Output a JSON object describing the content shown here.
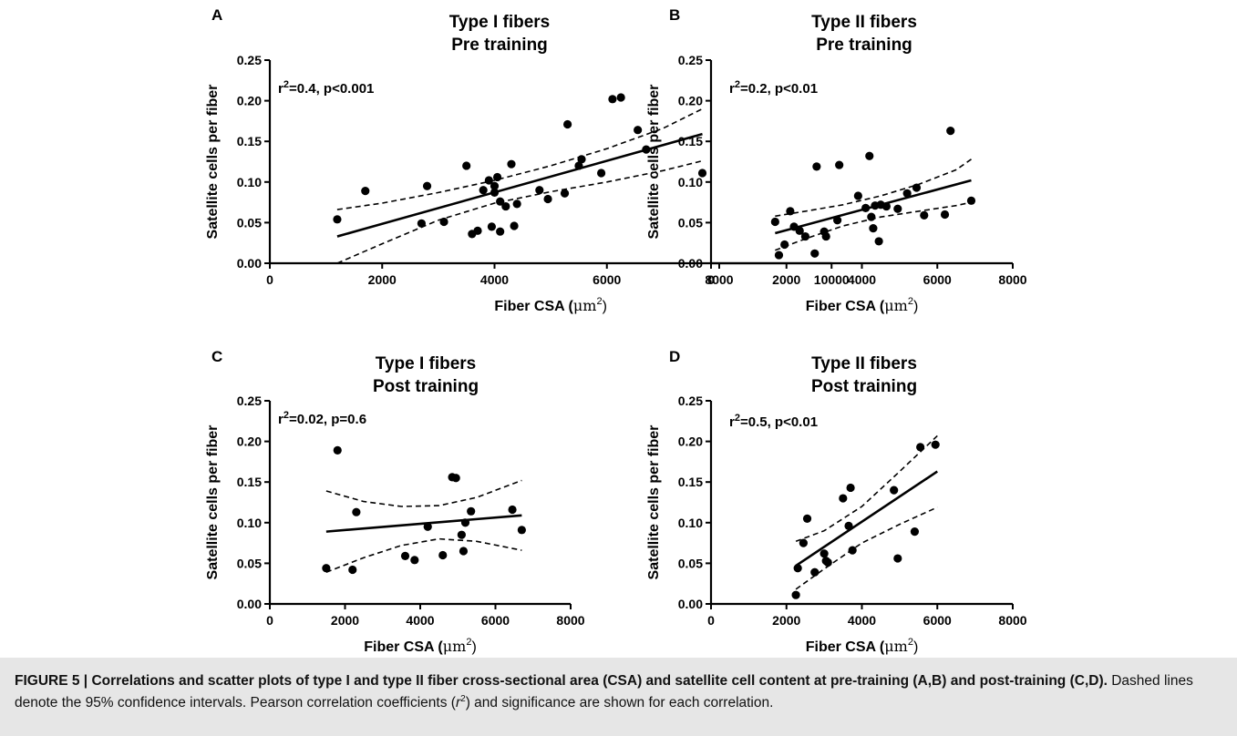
{
  "figure": {
    "caption": {
      "label": "FIGURE 5 |",
      "title": "Correlations and scatter plots of type I and type II fiber cross-sectional area (CSA) and satellite cell content at pre-training (A,B) and post-training (C,D).",
      "body_1": "Dashed lines denote the 95% confidence intervals. Pearson correlation coefficients (",
      "r": "r",
      "sup": "2",
      "body_2": ") and significance are shown for each correlation."
    }
  },
  "chart_data": [
    {
      "type": "scatter",
      "panel": "A",
      "title_line1": "Type I fibers",
      "title_line2": "Pre training",
      "annotation_prefix": "r",
      "annotation_sup": "2",
      "annotation_suffix": "=0.4, p<0.001",
      "xlabel_text": "Fiber CSA (",
      "xlabel_unit": "μm",
      "xlabel_sup": "2",
      "xlabel_close": ")",
      "ylabel": "Satellite cells per fiber",
      "xlim": [
        0,
        10000
      ],
      "ylim": [
        0,
        0.25
      ],
      "xticks": [
        0,
        2000,
        4000,
        6000,
        8000,
        10000
      ],
      "xtick_labels": [
        "0",
        "2000",
        "4000",
        "6000",
        "8000",
        "10000"
      ],
      "yticks": [
        0,
        0.05,
        0.1,
        0.15,
        0.2,
        0.25
      ],
      "ytick_labels": [
        "0.00",
        "0.05",
        "0.10",
        "0.15",
        "0.20",
        "0.25"
      ],
      "x": [
        1200,
        1700,
        2700,
        2800,
        3100,
        3500,
        3600,
        3700,
        3800,
        3900,
        3950,
        4000,
        4000,
        4050,
        4100,
        4100,
        4200,
        4300,
        4350,
        4400,
        4800,
        4950,
        5250,
        5300,
        5500,
        5550,
        5900,
        6100,
        6250,
        6550,
        6700,
        7700
      ],
      "y": [
        0.054,
        0.089,
        0.049,
        0.095,
        0.051,
        0.12,
        0.036,
        0.04,
        0.09,
        0.102,
        0.045,
        0.095,
        0.087,
        0.106,
        0.076,
        0.039,
        0.07,
        0.122,
        0.046,
        0.073,
        0.09,
        0.079,
        0.086,
        0.171,
        0.12,
        0.128,
        0.111,
        0.202,
        0.204,
        0.164,
        0.14,
        0.111
      ],
      "fit": {
        "x": [
          1200,
          7700
        ],
        "y": [
          0.033,
          0.159
        ]
      },
      "ci_upper": {
        "x": [
          1200,
          2000,
          3000,
          4000,
          5000,
          6000,
          7000,
          7700
        ],
        "y": [
          0.066,
          0.074,
          0.087,
          0.102,
          0.12,
          0.141,
          0.166,
          0.19
        ]
      },
      "ci_lower": {
        "x": [
          1200,
          2000,
          3000,
          4000,
          5000,
          6000,
          7000,
          7700
        ],
        "y": [
          0.0,
          0.024,
          0.053,
          0.074,
          0.088,
          0.1,
          0.114,
          0.126
        ]
      }
    },
    {
      "type": "scatter",
      "panel": "B",
      "title_line1": "Type II fibers",
      "title_line2": "Pre training",
      "annotation_prefix": "r",
      "annotation_sup": "2",
      "annotation_suffix": "=0.2, p<0.01",
      "xlabel_text": "Fiber CSA (",
      "xlabel_unit": "μm",
      "xlabel_sup": "2",
      "xlabel_close": ")",
      "ylabel": "Satellite cells per fiber",
      "xlim": [
        0,
        8000
      ],
      "ylim": [
        0,
        0.25
      ],
      "xticks": [
        0,
        2000,
        4000,
        6000,
        8000
      ],
      "xtick_labels": [
        "0",
        "2000",
        "4000",
        "6000",
        "8000"
      ],
      "yticks": [
        0,
        0.05,
        0.1,
        0.15,
        0.2,
        0.25
      ],
      "ytick_labels": [
        "0.00",
        "0.05",
        "0.10",
        "0.15",
        "0.20",
        "0.25"
      ],
      "x": [
        1700,
        1800,
        1950,
        2100,
        2200,
        2350,
        2500,
        2750,
        2800,
        3000,
        3050,
        3350,
        3400,
        3900,
        4100,
        4200,
        4250,
        4300,
        4350,
        4450,
        4500,
        4650,
        4950,
        5200,
        5450,
        5650,
        6200,
        6350,
        6900
      ],
      "y": [
        0.051,
        0.01,
        0.023,
        0.064,
        0.045,
        0.04,
        0.033,
        0.012,
        0.119,
        0.039,
        0.033,
        0.053,
        0.121,
        0.083,
        0.068,
        0.132,
        0.057,
        0.043,
        0.071,
        0.027,
        0.072,
        0.07,
        0.067,
        0.086,
        0.093,
        0.059,
        0.06,
        0.163,
        0.077
      ],
      "fit": {
        "x": [
          1700,
          6900
        ],
        "y": [
          0.037,
          0.102
        ]
      },
      "ci_upper": {
        "x": [
          1700,
          2500,
          3500,
          4500,
          5500,
          6500,
          6900
        ],
        "y": [
          0.058,
          0.064,
          0.072,
          0.083,
          0.097,
          0.115,
          0.128
        ]
      },
      "ci_lower": {
        "x": [
          1700,
          2500,
          3500,
          4500,
          5500,
          6500,
          6900
        ],
        "y": [
          0.016,
          0.03,
          0.046,
          0.057,
          0.064,
          0.071,
          0.075
        ]
      }
    },
    {
      "type": "scatter",
      "panel": "C",
      "title_line1": "Type I fibers",
      "title_line2": "Post training",
      "annotation_prefix": "r",
      "annotation_sup": "2",
      "annotation_suffix": "=0.02, p=0.6",
      "xlabel_text": "Fiber CSA (",
      "xlabel_unit": "μm",
      "xlabel_sup": "2",
      "xlabel_close": ")",
      "ylabel": "Satellite cells per fiber",
      "xlim": [
        0,
        8000
      ],
      "ylim": [
        0,
        0.25
      ],
      "xticks": [
        0,
        2000,
        4000,
        6000,
        8000
      ],
      "xtick_labels": [
        "0",
        "2000",
        "4000",
        "6000",
        "8000"
      ],
      "yticks": [
        0,
        0.05,
        0.1,
        0.15,
        0.2,
        0.25
      ],
      "ytick_labels": [
        "0.00",
        "0.05",
        "0.10",
        "0.15",
        "0.20",
        "0.25"
      ],
      "x": [
        1500,
        1800,
        2200,
        2300,
        3600,
        3850,
        4200,
        4600,
        4850,
        4950,
        5100,
        5150,
        5200,
        5350,
        6450,
        6700
      ],
      "y": [
        0.044,
        0.189,
        0.042,
        0.113,
        0.059,
        0.054,
        0.095,
        0.06,
        0.156,
        0.155,
        0.085,
        0.065,
        0.1,
        0.114,
        0.116,
        0.091
      ],
      "fit": {
        "x": [
          1500,
          6700
        ],
        "y": [
          0.089,
          0.109
        ]
      },
      "ci_upper": {
        "x": [
          1500,
          2500,
          3500,
          4500,
          5500,
          6700
        ],
        "y": [
          0.139,
          0.126,
          0.12,
          0.121,
          0.131,
          0.152
        ]
      },
      "ci_lower": {
        "x": [
          1500,
          2500,
          3500,
          4500,
          5500,
          6700
        ],
        "y": [
          0.039,
          0.057,
          0.072,
          0.08,
          0.077,
          0.066
        ]
      }
    },
    {
      "type": "scatter",
      "panel": "D",
      "title_line1": "Type II fibers",
      "title_line2": "Post training",
      "annotation_prefix": "r",
      "annotation_sup": "2",
      "annotation_suffix": "=0.5, p<0.01",
      "xlabel_text": "Fiber CSA (",
      "xlabel_unit": "μm",
      "xlabel_sup": "2",
      "xlabel_close": ")",
      "ylabel": "Satellite cells per fiber",
      "xlim": [
        0,
        8000
      ],
      "ylim": [
        0,
        0.25
      ],
      "xticks": [
        0,
        2000,
        4000,
        6000,
        8000
      ],
      "xtick_labels": [
        "0",
        "2000",
        "4000",
        "6000",
        "8000"
      ],
      "yticks": [
        0,
        0.05,
        0.1,
        0.15,
        0.2,
        0.25
      ],
      "ytick_labels": [
        "0.00",
        "0.05",
        "0.10",
        "0.15",
        "0.20",
        "0.25"
      ],
      "x": [
        2250,
        2300,
        2450,
        2550,
        2750,
        3000,
        3050,
        3100,
        3500,
        3650,
        3700,
        3750,
        4850,
        4950,
        5400,
        5550,
        5950
      ],
      "y": [
        0.011,
        0.044,
        0.075,
        0.105,
        0.039,
        0.062,
        0.053,
        0.051,
        0.13,
        0.096,
        0.143,
        0.066,
        0.14,
        0.056,
        0.089,
        0.193,
        0.196
      ],
      "fit": {
        "x": [
          2250,
          6000
        ],
        "y": [
          0.047,
          0.163
        ]
      },
      "ci_upper": {
        "x": [
          2250,
          3000,
          4000,
          5000,
          6000
        ],
        "y": [
          0.077,
          0.09,
          0.12,
          0.163,
          0.207
        ]
      },
      "ci_lower": {
        "x": [
          2250,
          3000,
          4000,
          5000,
          6000
        ],
        "y": [
          0.018,
          0.043,
          0.075,
          0.098,
          0.119
        ]
      }
    }
  ]
}
